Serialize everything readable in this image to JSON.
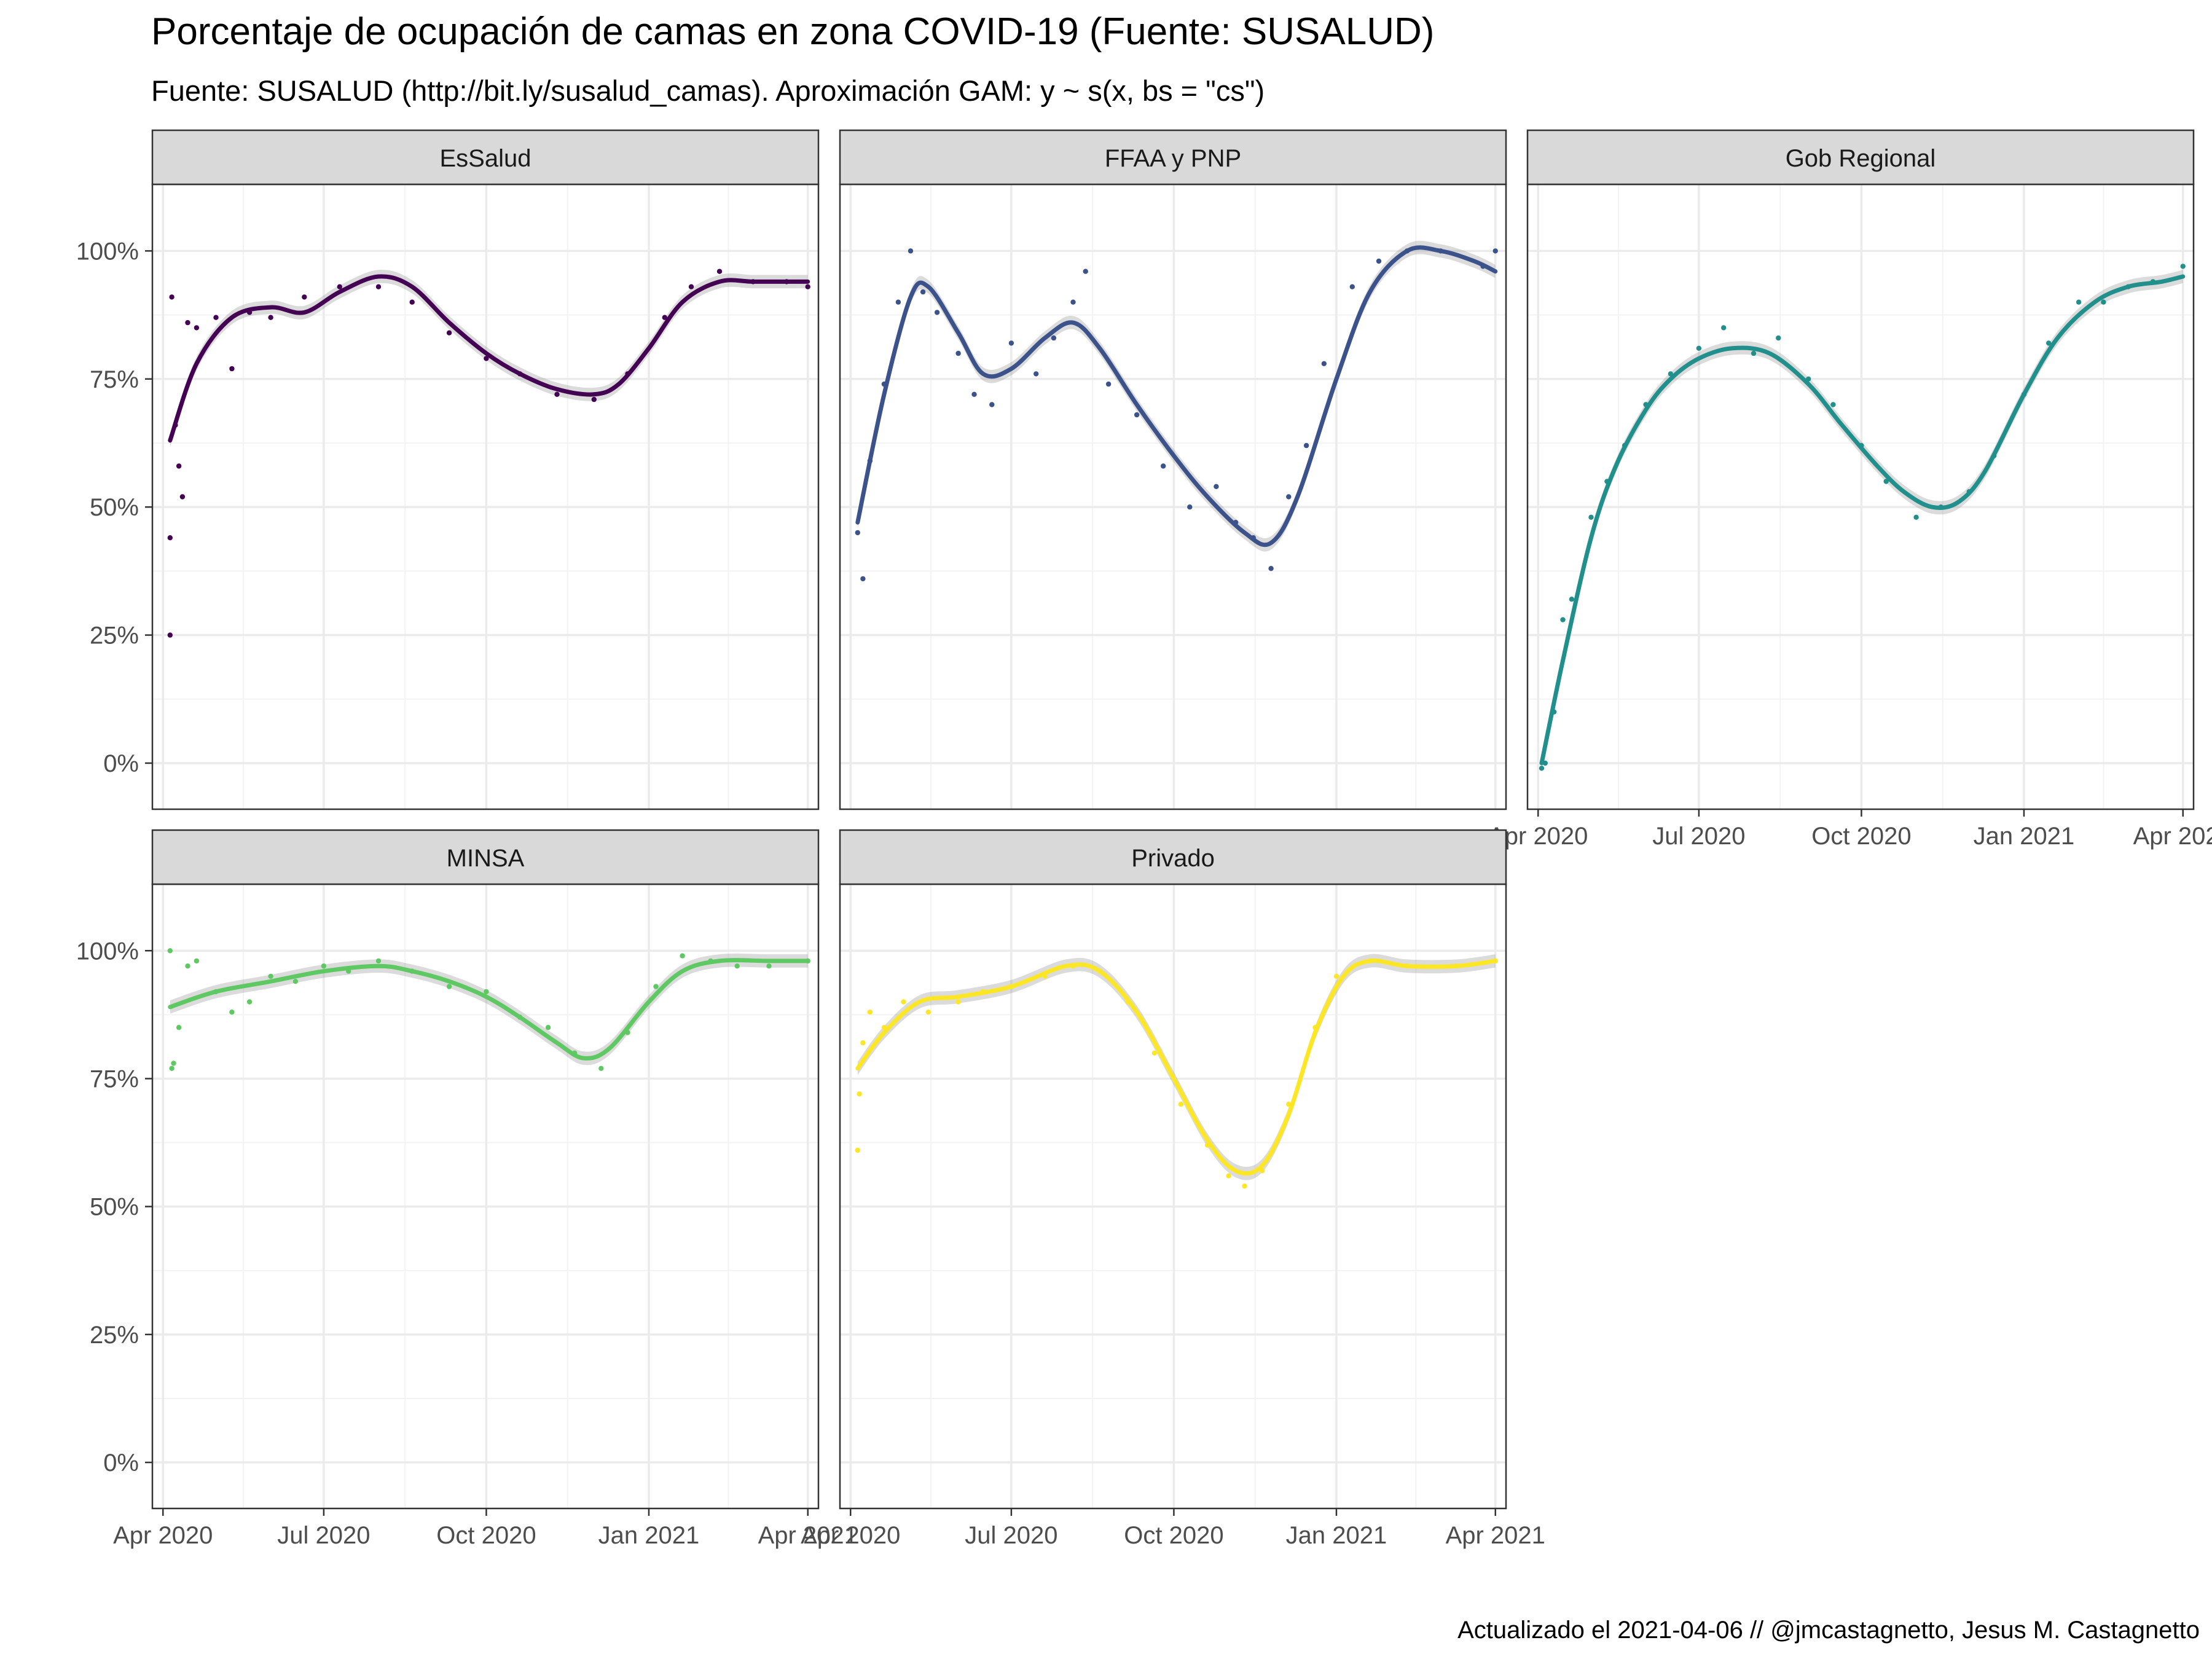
{
  "title": "Porcentaje de ocupación de camas en zona COVID-19 (Fuente: SUSALUD)",
  "subtitle": "Fuente: SUSALUD (http://bit.ly/susalud_camas). Aproximación GAM: y ~ s(x, bs = \"cs\")",
  "caption": "Actualizado el 2021-04-06 // @jmcastagnetto, Jesus M. Castagnetto",
  "colors": {
    "panel_border": "#333333",
    "strip_fill": "#d9d9d9",
    "grid_major": "#ebebeb",
    "grid_minor": "#f3f3f3",
    "ribbon": "#999999"
  },
  "chart_data": {
    "type": "scatter",
    "subtype": "faceted scatter with GAM smooth line and confidence ribbon",
    "facet_layout": "3 columns x 2 rows",
    "x_domain": [
      "2020-03-26",
      "2021-04-07"
    ],
    "x_ticks": [
      {
        "date": "2020-04-01",
        "label": "Apr 2020"
      },
      {
        "date": "2020-07-01",
        "label": "Jul 2020"
      },
      {
        "date": "2020-10-01",
        "label": "Oct 2020"
      },
      {
        "date": "2021-01-01",
        "label": "Jan 2021"
      },
      {
        "date": "2021-04-01",
        "label": "Apr 2021"
      }
    ],
    "ylim": [
      -0.09,
      1.13
    ],
    "y_ticks": [
      {
        "value": 0,
        "label": "0%"
      },
      {
        "value": 0.25,
        "label": "25%"
      },
      {
        "value": 0.5,
        "label": "50%"
      },
      {
        "value": 0.75,
        "label": "75%"
      },
      {
        "value": 1,
        "label": "100%"
      }
    ],
    "grid": true,
    "legend": "none",
    "series": [
      {
        "name": "EsSalud",
        "color": "#440154",
        "points": [
          [
            "2020-04-05",
            0.25
          ],
          [
            "2020-04-05",
            0.44
          ],
          [
            "2020-04-06",
            0.91
          ],
          [
            "2020-04-08",
            0.66
          ],
          [
            "2020-04-10",
            0.58
          ],
          [
            "2020-04-12",
            0.52
          ],
          [
            "2020-04-15",
            0.86
          ],
          [
            "2020-04-20",
            0.85
          ],
          [
            "2020-05-01",
            0.87
          ],
          [
            "2020-05-10",
            0.77
          ],
          [
            "2020-05-20",
            0.88
          ],
          [
            "2020-06-01",
            0.87
          ],
          [
            "2020-06-20",
            0.91
          ],
          [
            "2020-07-10",
            0.93
          ],
          [
            "2020-08-01",
            0.93
          ],
          [
            "2020-08-20",
            0.9
          ],
          [
            "2020-09-10",
            0.84
          ],
          [
            "2020-10-01",
            0.79
          ],
          [
            "2020-10-20",
            0.76
          ],
          [
            "2020-11-10",
            0.72
          ],
          [
            "2020-12-01",
            0.71
          ],
          [
            "2020-12-20",
            0.76
          ],
          [
            "2021-01-10",
            0.87
          ],
          [
            "2021-01-25",
            0.93
          ],
          [
            "2021-02-10",
            0.96
          ],
          [
            "2021-03-01",
            0.94
          ],
          [
            "2021-03-20",
            0.94
          ],
          [
            "2021-04-01",
            0.93
          ]
        ],
        "smooth": [
          [
            "2020-04-05",
            0.63
          ],
          [
            "2020-04-20",
            0.78
          ],
          [
            "2020-05-10",
            0.87
          ],
          [
            "2020-06-01",
            0.89
          ],
          [
            "2020-06-20",
            0.88
          ],
          [
            "2020-07-10",
            0.92
          ],
          [
            "2020-08-01",
            0.95
          ],
          [
            "2020-08-20",
            0.93
          ],
          [
            "2020-09-10",
            0.86
          ],
          [
            "2020-10-01",
            0.8
          ],
          [
            "2020-10-20",
            0.76
          ],
          [
            "2020-11-10",
            0.73
          ],
          [
            "2020-12-01",
            0.72
          ],
          [
            "2020-12-15",
            0.74
          ],
          [
            "2021-01-01",
            0.81
          ],
          [
            "2021-01-20",
            0.9
          ],
          [
            "2021-02-10",
            0.94
          ],
          [
            "2021-03-01",
            0.94
          ],
          [
            "2021-03-20",
            0.94
          ],
          [
            "2021-04-01",
            0.94
          ]
        ]
      },
      {
        "name": "FFAA y PNP",
        "color": "#3b528b",
        "points": [
          [
            "2020-04-05",
            0.45
          ],
          [
            "2020-04-08",
            0.36
          ],
          [
            "2020-04-12",
            0.59
          ],
          [
            "2020-04-20",
            0.74
          ],
          [
            "2020-04-28",
            0.9
          ],
          [
            "2020-05-05",
            1.0
          ],
          [
            "2020-05-12",
            0.92
          ],
          [
            "2020-05-20",
            0.88
          ],
          [
            "2020-06-01",
            0.8
          ],
          [
            "2020-06-10",
            0.72
          ],
          [
            "2020-06-20",
            0.7
          ],
          [
            "2020-07-01",
            0.82
          ],
          [
            "2020-07-15",
            0.76
          ],
          [
            "2020-07-25",
            0.83
          ],
          [
            "2020-08-05",
            0.9
          ],
          [
            "2020-08-12",
            0.96
          ],
          [
            "2020-08-25",
            0.74
          ],
          [
            "2020-09-10",
            0.68
          ],
          [
            "2020-09-25",
            0.58
          ],
          [
            "2020-10-10",
            0.5
          ],
          [
            "2020-10-25",
            0.54
          ],
          [
            "2020-11-05",
            0.47
          ],
          [
            "2020-11-15",
            0.44
          ],
          [
            "2020-11-25",
            0.38
          ],
          [
            "2020-12-05",
            0.52
          ],
          [
            "2020-12-15",
            0.62
          ],
          [
            "2020-12-25",
            0.78
          ],
          [
            "2021-01-10",
            0.93
          ],
          [
            "2021-01-25",
            0.98
          ],
          [
            "2021-02-10",
            1.0
          ],
          [
            "2021-03-01",
            1.0
          ],
          [
            "2021-03-25",
            0.97
          ],
          [
            "2021-04-01",
            1.0
          ]
        ],
        "smooth": [
          [
            "2020-04-05",
            0.47
          ],
          [
            "2020-04-20",
            0.72
          ],
          [
            "2020-05-05",
            0.91
          ],
          [
            "2020-05-15",
            0.93
          ],
          [
            "2020-06-01",
            0.84
          ],
          [
            "2020-06-15",
            0.76
          ],
          [
            "2020-07-01",
            0.77
          ],
          [
            "2020-07-20",
            0.83
          ],
          [
            "2020-08-05",
            0.86
          ],
          [
            "2020-08-20",
            0.81
          ],
          [
            "2020-09-10",
            0.7
          ],
          [
            "2020-10-01",
            0.6
          ],
          [
            "2020-10-20",
            0.52
          ],
          [
            "2020-11-10",
            0.45
          ],
          [
            "2020-11-25",
            0.43
          ],
          [
            "2020-12-10",
            0.52
          ],
          [
            "2021-01-01",
            0.75
          ],
          [
            "2021-01-20",
            0.92
          ],
          [
            "2021-02-10",
            1.0
          ],
          [
            "2021-03-01",
            1.0
          ],
          [
            "2021-03-20",
            0.98
          ],
          [
            "2021-04-01",
            0.96
          ]
        ]
      },
      {
        "name": "Gob Regional",
        "color": "#21908c",
        "points": [
          [
            "2020-04-03",
            -0.01
          ],
          [
            "2020-04-05",
            0.0
          ],
          [
            "2020-04-10",
            0.1
          ],
          [
            "2020-04-15",
            0.28
          ],
          [
            "2020-04-20",
            0.32
          ],
          [
            "2020-05-01",
            0.48
          ],
          [
            "2020-05-10",
            0.55
          ],
          [
            "2020-05-20",
            0.62
          ],
          [
            "2020-06-01",
            0.7
          ],
          [
            "2020-06-15",
            0.76
          ],
          [
            "2020-07-01",
            0.81
          ],
          [
            "2020-07-15",
            0.85
          ],
          [
            "2020-08-01",
            0.8
          ],
          [
            "2020-08-15",
            0.83
          ],
          [
            "2020-09-01",
            0.75
          ],
          [
            "2020-09-15",
            0.7
          ],
          [
            "2020-10-01",
            0.62
          ],
          [
            "2020-10-15",
            0.55
          ],
          [
            "2020-11-01",
            0.48
          ],
          [
            "2020-11-15",
            0.5
          ],
          [
            "2020-12-01",
            0.53
          ],
          [
            "2020-12-15",
            0.6
          ],
          [
            "2021-01-01",
            0.72
          ],
          [
            "2021-01-15",
            0.82
          ],
          [
            "2021-02-01",
            0.9
          ],
          [
            "2021-02-15",
            0.9
          ],
          [
            "2021-03-01",
            0.93
          ],
          [
            "2021-03-15",
            0.94
          ],
          [
            "2021-04-01",
            0.97
          ]
        ],
        "smooth": [
          [
            "2020-04-03",
            0.0
          ],
          [
            "2020-04-15",
            0.2
          ],
          [
            "2020-05-01",
            0.44
          ],
          [
            "2020-05-15",
            0.58
          ],
          [
            "2020-06-01",
            0.69
          ],
          [
            "2020-06-15",
            0.75
          ],
          [
            "2020-07-01",
            0.79
          ],
          [
            "2020-07-20",
            0.81
          ],
          [
            "2020-08-10",
            0.8
          ],
          [
            "2020-09-01",
            0.74
          ],
          [
            "2020-09-20",
            0.66
          ],
          [
            "2020-10-10",
            0.58
          ],
          [
            "2020-10-25",
            0.53
          ],
          [
            "2020-11-10",
            0.5
          ],
          [
            "2020-11-25",
            0.51
          ],
          [
            "2020-12-10",
            0.57
          ],
          [
            "2021-01-01",
            0.72
          ],
          [
            "2021-01-20",
            0.83
          ],
          [
            "2021-02-10",
            0.9
          ],
          [
            "2021-03-01",
            0.93
          ],
          [
            "2021-03-20",
            0.94
          ],
          [
            "2021-04-01",
            0.95
          ]
        ]
      },
      {
        "name": "MINSA",
        "color": "#5ec962",
        "points": [
          [
            "2020-04-05",
            1.0
          ],
          [
            "2020-04-06",
            0.77
          ],
          [
            "2020-04-07",
            0.78
          ],
          [
            "2020-04-10",
            0.85
          ],
          [
            "2020-04-15",
            0.97
          ],
          [
            "2020-04-20",
            0.98
          ],
          [
            "2020-05-01",
            0.92
          ],
          [
            "2020-05-10",
            0.88
          ],
          [
            "2020-05-20",
            0.9
          ],
          [
            "2020-06-01",
            0.95
          ],
          [
            "2020-06-15",
            0.94
          ],
          [
            "2020-07-01",
            0.97
          ],
          [
            "2020-07-15",
            0.96
          ],
          [
            "2020-08-01",
            0.98
          ],
          [
            "2020-08-20",
            0.96
          ],
          [
            "2020-09-10",
            0.93
          ],
          [
            "2020-10-01",
            0.92
          ],
          [
            "2020-10-20",
            0.87
          ],
          [
            "2020-11-05",
            0.85
          ],
          [
            "2020-11-20",
            0.8
          ],
          [
            "2020-12-05",
            0.77
          ],
          [
            "2020-12-20",
            0.84
          ],
          [
            "2021-01-05",
            0.93
          ],
          [
            "2021-01-20",
            0.99
          ],
          [
            "2021-02-05",
            0.98
          ],
          [
            "2021-02-20",
            0.97
          ],
          [
            "2021-03-10",
            0.97
          ],
          [
            "2021-04-01",
            0.98
          ]
        ],
        "smooth": [
          [
            "2020-04-05",
            0.89
          ],
          [
            "2020-05-01",
            0.92
          ],
          [
            "2020-06-01",
            0.94
          ],
          [
            "2020-07-01",
            0.96
          ],
          [
            "2020-08-01",
            0.97
          ],
          [
            "2020-08-20",
            0.96
          ],
          [
            "2020-09-10",
            0.94
          ],
          [
            "2020-10-01",
            0.91
          ],
          [
            "2020-10-20",
            0.87
          ],
          [
            "2020-11-10",
            0.82
          ],
          [
            "2020-11-25",
            0.79
          ],
          [
            "2020-12-10",
            0.81
          ],
          [
            "2021-01-01",
            0.9
          ],
          [
            "2021-01-20",
            0.96
          ],
          [
            "2021-02-10",
            0.98
          ],
          [
            "2021-03-10",
            0.98
          ],
          [
            "2021-04-01",
            0.98
          ]
        ]
      },
      {
        "name": "Privado",
        "color": "#fde725",
        "points": [
          [
            "2020-04-05",
            0.61
          ],
          [
            "2020-04-06",
            0.72
          ],
          [
            "2020-04-08",
            0.82
          ],
          [
            "2020-04-12",
            0.88
          ],
          [
            "2020-04-20",
            0.85
          ],
          [
            "2020-05-01",
            0.9
          ],
          [
            "2020-05-15",
            0.88
          ],
          [
            "2020-06-01",
            0.9
          ],
          [
            "2020-06-15",
            0.92
          ],
          [
            "2020-07-01",
            0.93
          ],
          [
            "2020-07-20",
            0.95
          ],
          [
            "2020-08-05",
            0.97
          ],
          [
            "2020-08-20",
            0.96
          ],
          [
            "2020-09-05",
            0.9
          ],
          [
            "2020-09-20",
            0.8
          ],
          [
            "2020-10-05",
            0.7
          ],
          [
            "2020-10-20",
            0.62
          ],
          [
            "2020-11-01",
            0.56
          ],
          [
            "2020-11-10",
            0.54
          ],
          [
            "2020-11-20",
            0.57
          ],
          [
            "2020-12-05",
            0.7
          ],
          [
            "2020-12-20",
            0.85
          ],
          [
            "2021-01-01",
            0.95
          ],
          [
            "2021-01-20",
            0.98
          ],
          [
            "2021-02-10",
            0.97
          ],
          [
            "2021-03-10",
            0.97
          ],
          [
            "2021-04-01",
            0.98
          ]
        ],
        "smooth": [
          [
            "2020-04-05",
            0.77
          ],
          [
            "2020-04-20",
            0.84
          ],
          [
            "2020-05-10",
            0.9
          ],
          [
            "2020-06-01",
            0.91
          ],
          [
            "2020-07-01",
            0.93
          ],
          [
            "2020-08-01",
            0.97
          ],
          [
            "2020-08-20",
            0.96
          ],
          [
            "2020-09-10",
            0.88
          ],
          [
            "2020-10-01",
            0.75
          ],
          [
            "2020-10-20",
            0.63
          ],
          [
            "2020-11-05",
            0.57
          ],
          [
            "2020-11-20",
            0.58
          ],
          [
            "2020-12-05",
            0.68
          ],
          [
            "2020-12-20",
            0.84
          ],
          [
            "2021-01-05",
            0.95
          ],
          [
            "2021-01-20",
            0.98
          ],
          [
            "2021-02-10",
            0.97
          ],
          [
            "2021-03-10",
            0.97
          ],
          [
            "2021-04-01",
            0.98
          ]
        ]
      }
    ]
  }
}
